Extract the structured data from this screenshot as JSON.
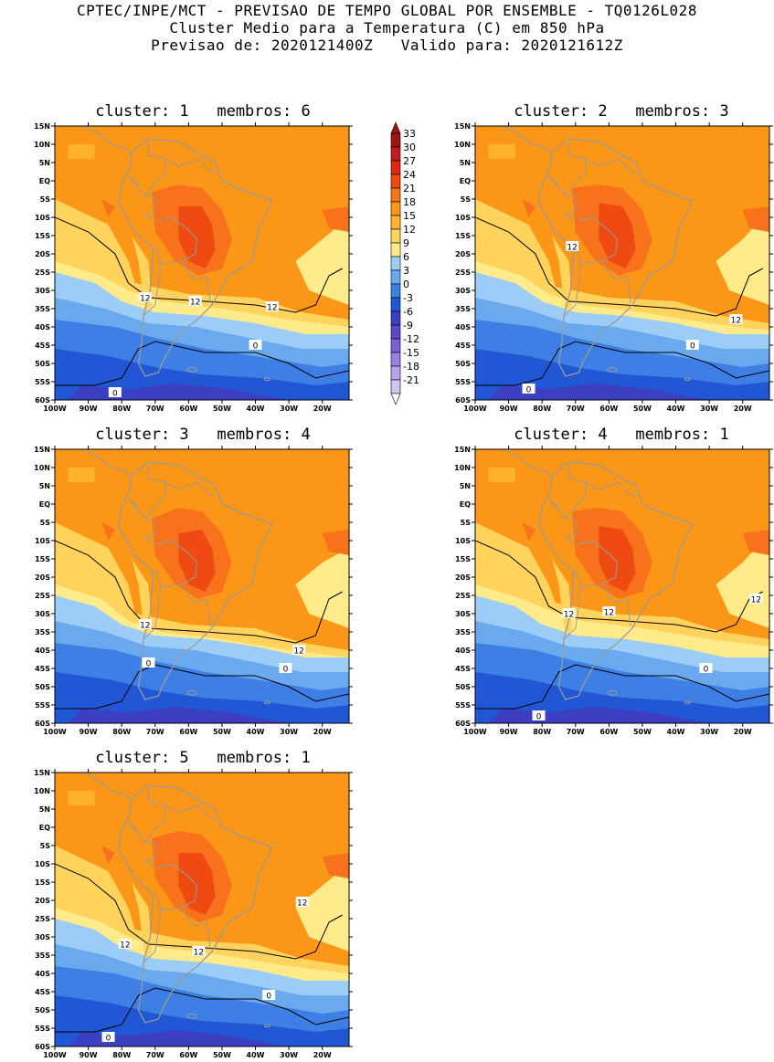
{
  "header": {
    "line1": "CPTEC/INPE/MCT - PREVISAO DE TEMPO GLOBAL POR ENSEMBLE - TQ0126L028",
    "line2": "Cluster Medio para a Temperatura (C) em 850 hPa",
    "line3": "Previsao de: 2020121400Z   Valido para: 2020121612Z"
  },
  "colorbar": {
    "levels": [
      "33",
      "30",
      "27",
      "24",
      "21",
      "18",
      "15",
      "12",
      "9",
      "6",
      "3",
      "0",
      "-3",
      "-6",
      "-9",
      "-12",
      "-15",
      "-18",
      "-21"
    ],
    "colors": [
      "#a31212",
      "#c21b1b",
      "#dc2a16",
      "#ee4a12",
      "#f7721a",
      "#fb9616",
      "#ffb22c",
      "#ffd35c",
      "#ffeb8a",
      "#9ccdf7",
      "#6ba9ef",
      "#3d7fe4",
      "#2157d4",
      "#3c3fc2",
      "#5a46c8",
      "#7a5fd6",
      "#9a80e2",
      "#b8a2ec",
      "#d4c4f3"
    ]
  },
  "axes": {
    "lat_ticks": [
      "15N",
      "10N",
      "5N",
      "EQ",
      "5S",
      "10S",
      "15S",
      "20S",
      "25S",
      "30S",
      "35S",
      "40S",
      "45S",
      "50S",
      "55S",
      "60S"
    ],
    "lon_ticks": [
      "100W",
      "90W",
      "80W",
      "70W",
      "60W",
      "50W",
      "40W",
      "30W",
      "20W"
    ]
  },
  "panels": [
    {
      "title": "cluster: 1   membros: 6",
      "contour_labels": [
        "12",
        "12",
        "12",
        "0",
        "0"
      ]
    },
    {
      "title": "cluster: 2   membros: 3",
      "contour_labels": [
        "12",
        "12",
        "0",
        "0"
      ]
    },
    {
      "title": "cluster: 3   membros: 4",
      "contour_labels": [
        "12",
        "12",
        "0",
        "0"
      ]
    },
    {
      "title": "cluster: 4   membros: 1",
      "contour_labels": [
        "12",
        "12",
        "12",
        "0",
        "0"
      ]
    },
    {
      "title": "cluster: 5   membros: 1",
      "contour_labels": [
        "12",
        "12",
        "12",
        "0",
        "0"
      ]
    }
  ]
}
